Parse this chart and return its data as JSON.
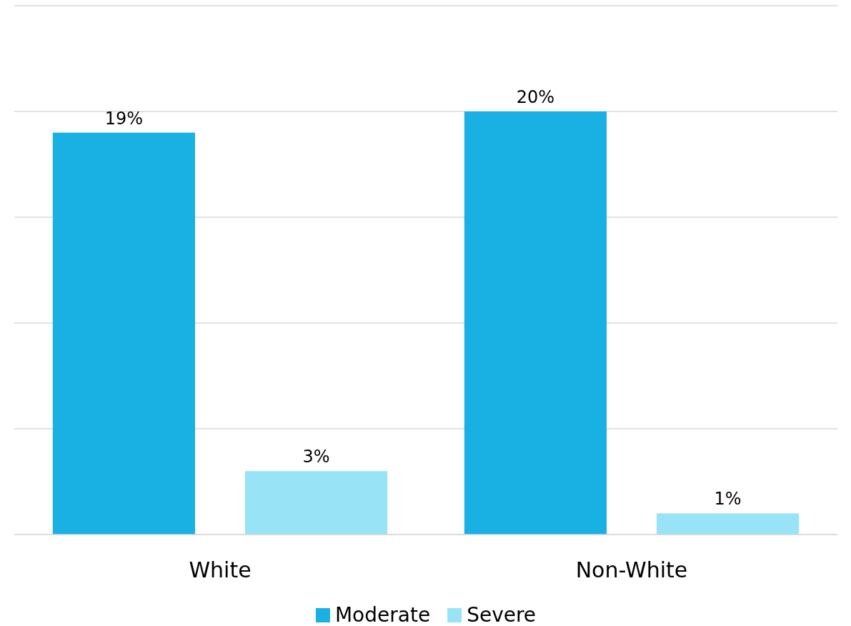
{
  "chart_data": {
    "type": "bar",
    "categories": [
      "White",
      "Non-White"
    ],
    "series": [
      {
        "name": "Moderate",
        "color": "#19b0e3",
        "values": [
          19,
          20
        ],
        "value_labels": [
          "19%",
          "20%"
        ]
      },
      {
        "name": "Severe",
        "color": "#99e3f7",
        "values": [
          3,
          1
        ],
        "value_labels": [
          "3%",
          "1%"
        ]
      }
    ],
    "ylim": [
      0,
      25
    ],
    "yticks": [
      {
        "value": 0,
        "label": null
      },
      {
        "value": 5,
        "label": null
      },
      {
        "value": 10,
        "label": null
      },
      {
        "value": 15,
        "label": null
      },
      {
        "value": 20,
        "label": null
      },
      {
        "value": 25,
        "label": null
      }
    ],
    "tick_labels": "x",
    "grid": "y",
    "legend": "bottom"
  }
}
